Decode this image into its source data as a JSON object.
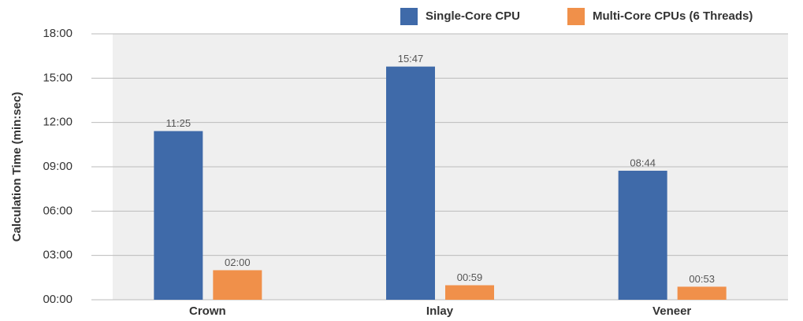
{
  "chart_data": {
    "type": "bar",
    "y_label": "Calculation Time (min:sec)",
    "categories": [
      "Crown",
      "Inlay",
      "Veneer"
    ],
    "series": [
      {
        "name": "Single-Core CPU",
        "color": "#3f6aa9",
        "values": [
          685,
          947,
          524
        ],
        "value_labels": [
          "11:25",
          "15:47",
          "08:44"
        ]
      },
      {
        "name": "Multi-Core CPUs (6 Threads)",
        "color": "#f0904a",
        "values": [
          120,
          59,
          53
        ],
        "value_labels": [
          "02:00",
          "00:59",
          "00:53"
        ]
      }
    ],
    "ylim": [
      0,
      1080
    ],
    "yticks": [
      {
        "value": 0,
        "label": "00:00"
      },
      {
        "value": 180,
        "label": "03:00"
      },
      {
        "value": 360,
        "label": "06:00"
      },
      {
        "value": 540,
        "label": "09:00"
      },
      {
        "value": 720,
        "label": "12:00"
      },
      {
        "value": 900,
        "label": "15:00"
      },
      {
        "value": 1080,
        "label": "18:00"
      }
    ],
    "grid": true,
    "legend": "top"
  }
}
